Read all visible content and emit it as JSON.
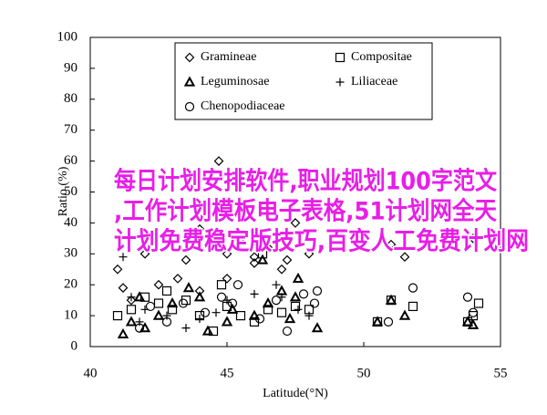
{
  "chart_data": {
    "type": "scatter",
    "xlabel": "Latitude(°N)",
    "ylabel": "Ratio (%)",
    "xlim": [
      40,
      55
    ],
    "xticks": [
      40,
      45,
      50,
      55
    ],
    "ylim": [
      0,
      100
    ],
    "yticks": [
      0,
      10,
      20,
      30,
      40,
      50,
      60,
      70,
      80,
      90,
      100
    ],
    "grid": false,
    "legend": "upper center",
    "series": [
      {
        "name": "Gramineae",
        "color": "#000000",
        "marker": "diamond",
        "x": [
          44.7,
          41,
          42,
          43,
          43.5,
          44,
          45,
          45.5,
          46,
          46.5,
          47,
          47.5,
          48,
          41.5,
          42.5,
          44,
          45,
          46,
          51,
          51.5,
          54,
          41.2,
          43.2,
          47.2
        ],
        "values": [
          60,
          25,
          30,
          35,
          28,
          38,
          30,
          35,
          29,
          32,
          25,
          40,
          30,
          15,
          20,
          18,
          22,
          27,
          33,
          29,
          35,
          19,
          22,
          28
        ]
      },
      {
        "name": "Compositae",
        "color": "#000000",
        "marker": "square",
        "x": [
          41,
          41.5,
          42,
          42.5,
          43,
          43.5,
          44,
          44.5,
          45,
          45.5,
          46,
          46.5,
          47,
          47.5,
          48,
          50.5,
          51,
          51.8,
          53.8,
          54,
          54.2,
          42.8,
          46.3,
          44.8
        ],
        "values": [
          10,
          12,
          16,
          14,
          12,
          15,
          10,
          5,
          13,
          10,
          8,
          12,
          11,
          13,
          12,
          8,
          15,
          13,
          8,
          10,
          14,
          18,
          30,
          20
        ]
      },
      {
        "name": "Leguminosae",
        "color": "#000000",
        "marker": "triangle",
        "x": [
          41.2,
          41.5,
          42,
          42.5,
          43,
          44,
          44.3,
          45,
          45.2,
          46,
          46.5,
          47,
          47.3,
          47.5,
          48.3,
          50.5,
          51,
          51.5,
          53.8,
          54,
          41.8,
          43.6,
          46.3,
          47.6
        ],
        "values": [
          4,
          8,
          6,
          10,
          14,
          16,
          5,
          8,
          12,
          10,
          14,
          18,
          9,
          16,
          6,
          8,
          15,
          10,
          8,
          7,
          16,
          19,
          28,
          22
        ]
      },
      {
        "name": "Liliaceae",
        "color": "#000000",
        "marker": "plus",
        "x": [
          41.2,
          41.5,
          42,
          42.8,
          43.5,
          44,
          45,
          46,
          47,
          47.6,
          41.8,
          44.6,
          46.8,
          48
        ],
        "values": [
          29,
          16,
          12,
          10,
          6,
          9,
          15,
          17,
          16,
          12,
          8,
          11,
          20,
          10
        ]
      },
      {
        "name": "Chenopodiaceae",
        "color": "#000000",
        "marker": "circle",
        "x": [
          41.8,
          42.2,
          42.8,
          43.4,
          44.2,
          44.8,
          45.4,
          46.2,
          46.8,
          47.2,
          47.8,
          48.2,
          48.3,
          50.9,
          51.8,
          53.8,
          54,
          45.2
        ],
        "values": [
          6,
          13,
          8,
          14,
          11,
          16,
          20,
          9,
          15,
          5,
          17,
          14,
          18,
          8,
          19,
          16,
          11,
          14
        ]
      }
    ]
  },
  "overlay_text": [
    "每日计划安排软件,职业规划100字范文",
    ",工作计划模板电子表格,51计划网全天",
    "计划免费稳定版技巧,百变人工免费计划网"
  ]
}
